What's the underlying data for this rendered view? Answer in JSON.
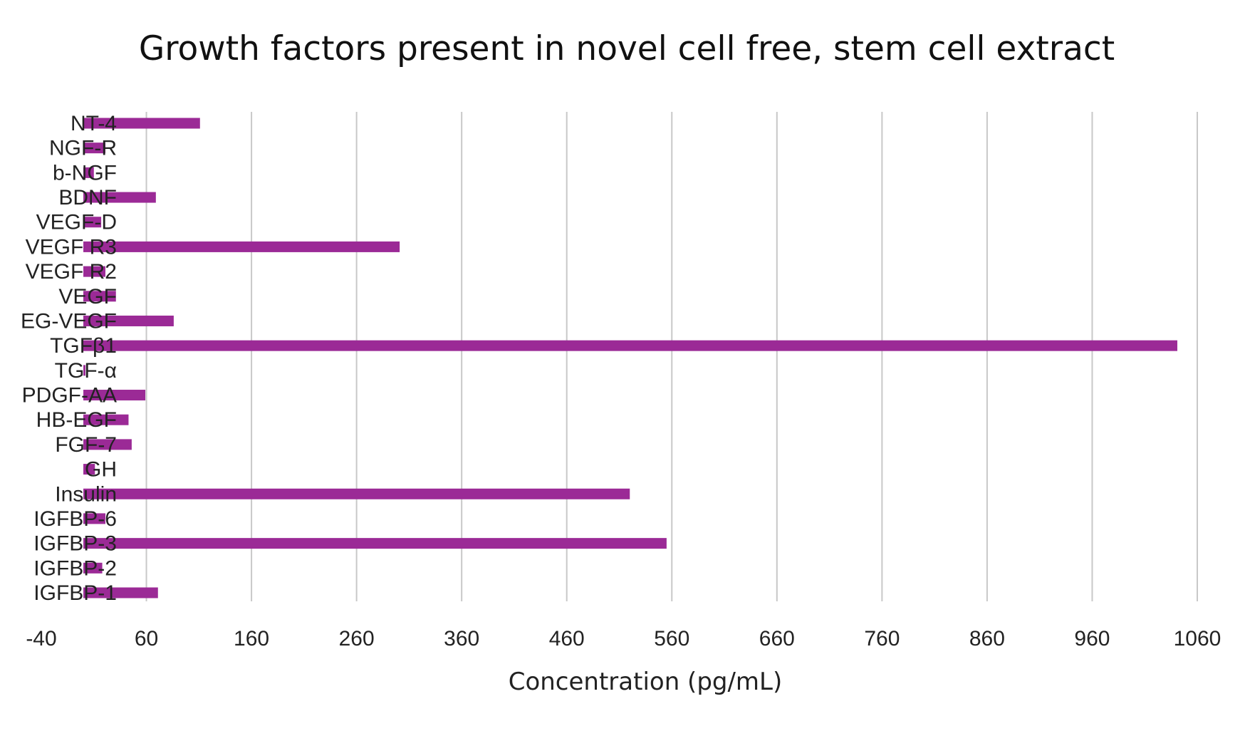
{
  "chart_data": {
    "type": "bar",
    "orientation": "horizontal",
    "title": "Growth factors present in novel cell free, stem cell extract",
    "xlabel": "Concentration (pg/mL)",
    "ylabel": "",
    "xlim": [
      -40,
      1060
    ],
    "xticks": [
      -40,
      60,
      160,
      260,
      360,
      460,
      560,
      660,
      760,
      860,
      960,
      1060
    ],
    "xtick_labels": [
      "-40",
      "60",
      "160",
      "260",
      "360",
      "460",
      "560",
      "660",
      "760",
      "860",
      "960",
      "1060"
    ],
    "grid": "vertical",
    "legend": "none",
    "bar_color": "#9b2a96",
    "categories": [
      "NT-4",
      "NGF-R",
      "b-NGF",
      "BDNF",
      "VEGF-D",
      "VEGF R3",
      "VEGF R2",
      "VEGF",
      "EG-VEGF",
      "TGFβ1",
      "TGF-α",
      "PDGF-AA",
      "HB-EGF",
      "FGF-7",
      "GH",
      "Insulin",
      "IGFBP-6",
      "IGFBP-3",
      "IGFBP-2",
      "IGFBP-1"
    ],
    "values": [
      111,
      21,
      10,
      69,
      17,
      301,
      21,
      31,
      86,
      1041,
      2,
      59,
      43,
      46,
      11,
      520,
      21,
      555,
      18,
      71
    ]
  }
}
